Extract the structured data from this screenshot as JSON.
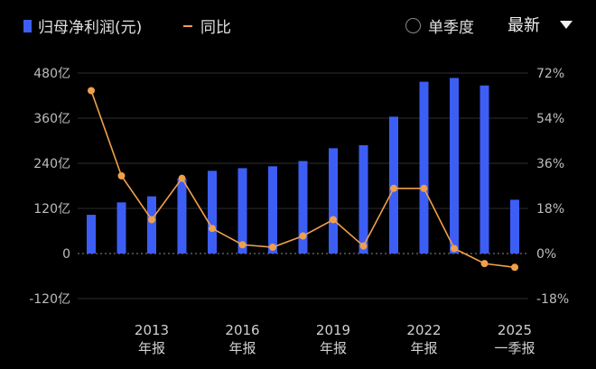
{
  "legend": {
    "bar_label": "归母净利润(元)",
    "line_label": "同比"
  },
  "toggle": {
    "label": "单季度"
  },
  "dropdown": {
    "label": "最新"
  },
  "colors": {
    "bar": "#3d5ef5",
    "line": "#f0a04b",
    "background": "#000000"
  },
  "chart_data": {
    "type": "bar",
    "bar_series": {
      "name": "归母净利润(元)",
      "unit": "亿",
      "values": [
        103,
        136,
        152,
        199,
        220,
        227,
        232,
        246,
        280,
        288,
        364,
        457,
        467,
        447,
        143
      ]
    },
    "line_series": {
      "name": "同比",
      "unit": "%",
      "values": [
        65,
        31,
        13.5,
        30,
        10,
        3.5,
        2.5,
        7,
        13.5,
        3,
        26,
        26,
        2,
        -4,
        -5.5
      ]
    },
    "x_labels": [
      {
        "index": 2,
        "line1": "2013",
        "line2": "年报"
      },
      {
        "index": 5,
        "line1": "2016",
        "line2": "年报"
      },
      {
        "index": 8,
        "line1": "2019",
        "line2": "年报"
      },
      {
        "index": 11,
        "line1": "2022",
        "line2": "年报"
      },
      {
        "index": 14,
        "line1": "2025",
        "line2": "一季报"
      }
    ],
    "y_left": {
      "ticks": [
        "480亿",
        "360亿",
        "240亿",
        "120亿",
        "0",
        "-120亿"
      ],
      "values": [
        480,
        360,
        240,
        120,
        0,
        -120
      ],
      "ylim": [
        -120,
        480
      ]
    },
    "y_right": {
      "ticks": [
        "72%",
        "54%",
        "36%",
        "18%",
        "0%",
        "-18%"
      ],
      "values": [
        72,
        54,
        36,
        18,
        0,
        -18
      ],
      "ylim": [
        -18,
        72
      ]
    },
    "grid": true
  }
}
